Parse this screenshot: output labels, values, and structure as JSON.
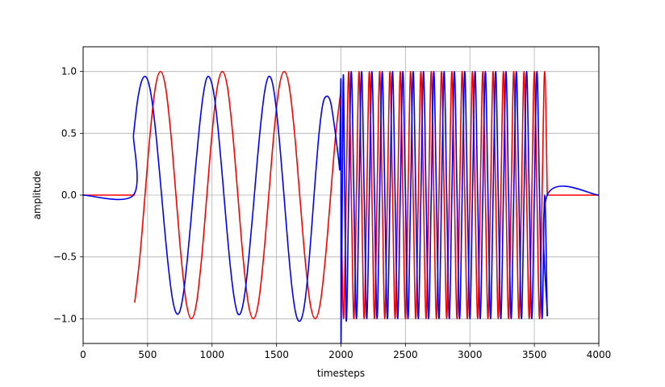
{
  "chart_data": {
    "type": "line",
    "title": "",
    "xlabel": "timesteps",
    "ylabel": "amplitude",
    "xlim": [
      0,
      4000
    ],
    "ylim": [
      -1.2,
      1.2
    ],
    "x_ticks": [
      0,
      500,
      1000,
      1500,
      2000,
      2500,
      3000,
      3500,
      4000
    ],
    "x_tick_labels": [
      "0",
      "500",
      "1000",
      "1500",
      "2000",
      "2500",
      "3000",
      "3500",
      "4000"
    ],
    "y_ticks": [
      -1.0,
      -0.5,
      0.0,
      0.5,
      1.0
    ],
    "y_tick_labels": [
      "−1.0",
      "−0.5",
      "0.0",
      "0.5",
      "1.0"
    ],
    "grid": true,
    "legend": "none",
    "series": [
      {
        "color": "#ff0000",
        "segments": [
          {
            "x": [
              0,
              400
            ],
            "y": [
              0,
              0
            ]
          },
          {
            "x": [
              400,
              440,
              480,
              520,
              560,
              600,
              640,
              680,
              720,
              760,
              800,
              840,
              880,
              920,
              960,
              1000,
              1040,
              1080,
              1120,
              1160,
              1200,
              1240,
              1280,
              1320,
              1360,
              1400,
              1440,
              1480,
              1520,
              1560,
              1600,
              1640,
              1680,
              1720,
              1760,
              1800,
              1840,
              1880,
              1920,
              1960,
              2000
            ],
            "y": [
              -0.87,
              -0.5,
              0.0,
              0.5,
              0.87,
              1.0,
              0.87,
              0.5,
              0.0,
              -0.5,
              -0.87,
              -1.0,
              -0.87,
              -0.5,
              0.0,
              0.5,
              0.87,
              1.0,
              0.87,
              0.5,
              0.0,
              -0.5,
              -0.87,
              -1.0,
              -0.87,
              -0.5,
              0.0,
              0.5,
              0.87,
              1.0,
              0.87,
              0.5,
              0.0,
              -0.5,
              -0.87,
              -1.0,
              -0.87,
              -0.5,
              0.0,
              0.5,
              0.85
            ]
          },
          {
            "x": [
              2000,
              2020,
              2040,
              2060,
              2080,
              2100,
              2120,
              2140,
              2160,
              2180,
              2200,
              2220,
              2240,
              2260,
              2280,
              2300,
              2320,
              2340,
              2360,
              2380,
              2400,
              2420,
              2440,
              2460,
              2480,
              2500,
              2520,
              2540,
              2560,
              2580,
              2600,
              2620,
              2640,
              2660,
              2680,
              2700,
              2720,
              2740,
              2760,
              2780,
              2800,
              2820,
              2840,
              2860,
              2880,
              2900,
              2920,
              2940,
              2960,
              2980,
              3000,
              3020,
              3040,
              3060,
              3080,
              3100,
              3120,
              3140,
              3160,
              3180,
              3200,
              3220,
              3240,
              3260,
              3280,
              3300,
              3320,
              3340,
              3360,
              3380,
              3400,
              3420,
              3440,
              3460,
              3480,
              3500,
              3520,
              3540,
              3560,
              3580,
              3600
            ],
            "y": [
              0.0,
              -1.0,
              0.0,
              1.0,
              0.0,
              -1.0,
              0.0,
              1.0,
              0.0,
              -1.0,
              0.0,
              1.0,
              0.0,
              -1.0,
              0.0,
              1.0,
              0.0,
              -1.0,
              0.0,
              1.0,
              0.0,
              -1.0,
              0.0,
              1.0,
              0.0,
              -1.0,
              0.0,
              1.0,
              0.0,
              -1.0,
              0.0,
              1.0,
              0.0,
              -1.0,
              0.0,
              1.0,
              0.0,
              -1.0,
              0.0,
              1.0,
              0.0,
              -1.0,
              0.0,
              1.0,
              0.0,
              -1.0,
              0.0,
              1.0,
              0.0,
              -1.0,
              0.0,
              1.0,
              0.0,
              -1.0,
              0.0,
              1.0,
              0.0,
              -1.0,
              0.0,
              1.0,
              0.0,
              -1.0,
              0.0,
              1.0,
              0.0,
              -1.0,
              0.0,
              1.0,
              0.0,
              -1.0,
              0.0,
              1.0,
              0.0,
              -1.0,
              0.0,
              1.0,
              0.0,
              -1.0,
              0.0,
              1.0,
              0.0
            ]
          },
          {
            "x": [
              3600,
              4000
            ],
            "y": [
              0,
              0
            ]
          }
        ]
      },
      {
        "color": "#0000ff",
        "segments": [
          {
            "x": [
              0,
              390,
              390
            ],
            "y": [
              0,
              0,
              0.48
            ]
          },
          {
            "x": [
              390,
              420,
              450,
              480,
              510,
              540,
              570,
              600,
              630,
              660,
              690,
              720,
              750,
              780,
              810,
              840,
              870,
              900,
              930,
              960,
              990,
              1020,
              1050,
              1080,
              1110,
              1140,
              1170,
              1200,
              1230,
              1260,
              1290,
              1320,
              1350,
              1380,
              1410,
              1440,
              1470,
              1500,
              1530,
              1560,
              1590,
              1620,
              1650,
              1680,
              1710,
              1740,
              1770,
              1800,
              1830,
              1860,
              1890,
              1920,
              1950,
              1980,
              1990
            ],
            "y": [
              0.48,
              0.75,
              0.91,
              0.96,
              0.9,
              0.72,
              0.44,
              0.1,
              -0.25,
              -0.57,
              -0.82,
              -0.95,
              -0.94,
              -0.78,
              -0.5,
              -0.16,
              0.2,
              0.53,
              0.8,
              0.95,
              0.93,
              0.78,
              0.5,
              0.15,
              -0.22,
              -0.56,
              -0.82,
              -0.96,
              -0.93,
              -0.75,
              -0.45,
              -0.1,
              0.27,
              0.6,
              0.85,
              0.96,
              0.9,
              0.68,
              0.35,
              -0.03,
              -0.42,
              -0.75,
              -0.96,
              -1.02,
              -0.93,
              -0.68,
              -0.3,
              0.12,
              0.5,
              0.74,
              0.8,
              0.75,
              0.55,
              0.3,
              0.2
            ]
          },
          {
            "x": [
              1990,
              2000,
              2000,
              2010,
              2020,
              2040,
              2060,
              2080,
              2100,
              2120,
              2140,
              2160,
              2180,
              2200,
              2220,
              2240,
              2260,
              2280,
              2300,
              2320,
              2340,
              2360,
              2380,
              2400,
              2420,
              2440,
              2460,
              2480,
              2500,
              2520,
              2540,
              2560,
              2580,
              2600,
              2620,
              2640,
              2660,
              2680,
              2700,
              2720,
              2740,
              2760,
              2780,
              2800,
              2820,
              2840,
              2860,
              2880,
              2900,
              2920,
              2940,
              2960,
              2980,
              3000,
              3020,
              3040,
              3060,
              3080,
              3100,
              3120,
              3140,
              3160,
              3180,
              3200,
              3220,
              3240,
              3260,
              3280,
              3300,
              3320,
              3340,
              3360,
              3380,
              3400,
              3420,
              3440,
              3460,
              3480,
              3500,
              3520,
              3540,
              3560,
              3580,
              3600
            ],
            "y": [
              0.2,
              0.9,
              -1.2,
              0.0,
              0.95,
              -1.0,
              0.0,
              1.0,
              0.0,
              -1.0,
              0.0,
              1.0,
              0.0,
              -1.0,
              0.0,
              1.0,
              0.0,
              -1.0,
              0.0,
              1.0,
              0.0,
              -1.0,
              0.0,
              1.0,
              0.0,
              -1.0,
              0.0,
              1.0,
              0.0,
              -1.0,
              0.0,
              1.0,
              0.0,
              -1.0,
              0.0,
              1.0,
              0.0,
              -1.0,
              0.0,
              1.0,
              0.0,
              -1.0,
              0.0,
              1.0,
              0.0,
              -1.0,
              0.0,
              1.0,
              0.0,
              -1.0,
              0.0,
              1.0,
              0.0,
              -1.0,
              0.0,
              1.0,
              0.0,
              -1.0,
              0.0,
              1.0,
              0.0,
              -1.0,
              0.0,
              1.0,
              0.0,
              -1.0,
              0.0,
              1.0,
              0.0,
              -1.0,
              0.0,
              1.0,
              0.0,
              -1.0,
              0.0,
              1.0,
              0.0,
              -1.0,
              0.0,
              1.0,
              0.0,
              -1.0,
              0.0,
              -0.98
            ]
          },
          {
            "x": [
              3600,
              3600,
              4000
            ],
            "y": [
              -0.98,
              0,
              0
            ]
          }
        ]
      }
    ]
  }
}
